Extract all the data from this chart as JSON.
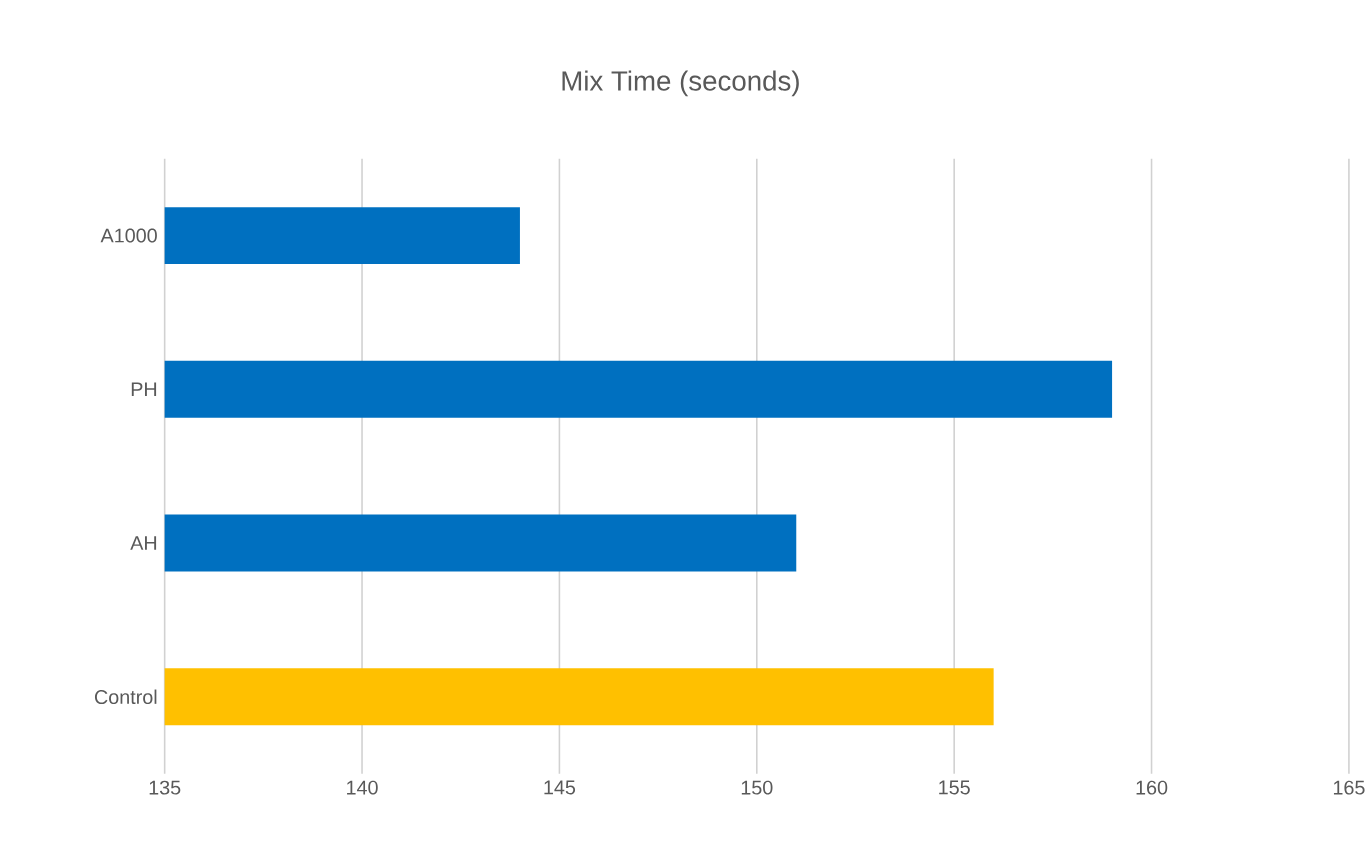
{
  "chart_data": {
    "type": "bar",
    "orientation": "horizontal",
    "title": "Mix Time (seconds)",
    "categories": [
      "A1000",
      "PH",
      "AH",
      "Control"
    ],
    "values": [
      144,
      159,
      151,
      156
    ],
    "colors": [
      "#0070c0",
      "#0070c0",
      "#0070c0",
      "#ffc000"
    ],
    "xlim": [
      135,
      165
    ],
    "xticks": [
      135,
      140,
      145,
      150,
      155,
      160,
      165
    ],
    "grid": "x"
  }
}
